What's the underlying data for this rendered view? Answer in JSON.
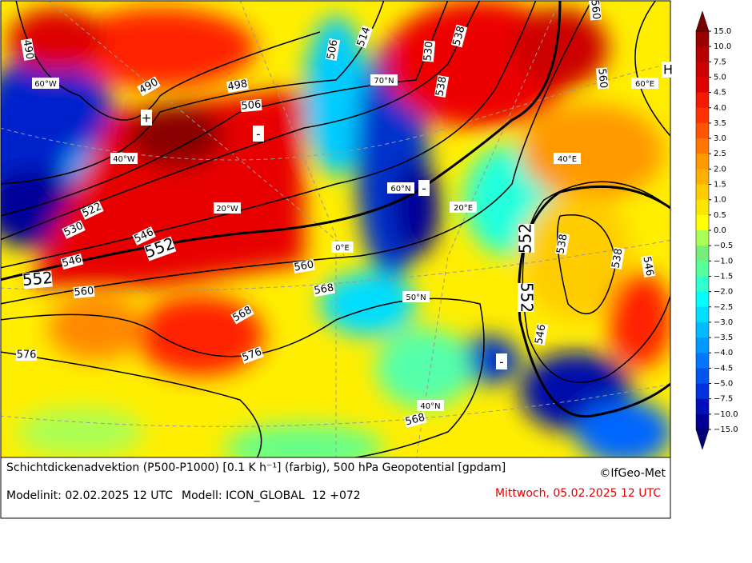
{
  "map": {
    "contour_labels": [
      "490",
      "490",
      "498",
      "506",
      "506",
      "514",
      "530",
      "538",
      "538",
      "560",
      "560",
      "522",
      "530",
      "546",
      "552",
      "546",
      "552",
      "560",
      "560",
      "568",
      "568",
      "576",
      "576",
      "568",
      "552",
      "552",
      "538",
      "538",
      "546",
      "546"
    ],
    "grid_labels": [
      "60°W",
      "40°W",
      "20°W",
      "0°E",
      "20°E",
      "40°E",
      "60°E",
      "70°N",
      "60°N",
      "50°N",
      "40°N"
    ],
    "markers": [
      "+",
      "-",
      "-",
      "-"
    ],
    "pressure_center": "H"
  },
  "colorbar": {
    "labels": [
      "15.0",
      "10.0",
      "7.5",
      "5.0",
      "4.5",
      "4.0",
      "3.5",
      "3.0",
      "2.5",
      "2.0",
      "1.5",
      "1.0",
      "0.5",
      "0.0",
      "−0.5",
      "−1.0",
      "−1.5",
      "−2.0",
      "−2.5",
      "−3.0",
      "−3.5",
      "−4.0",
      "−4.5",
      "−5.0",
      "−7.5",
      "−10.0",
      "−15.0"
    ],
    "colors": [
      "#7a0000",
      "#9b0000",
      "#b40000",
      "#cc0000",
      "#e00000",
      "#f21a00",
      "#ff3300",
      "#ff5500",
      "#ff7700",
      "#ff9900",
      "#ffb000",
      "#ffcc00",
      "#ffe600",
      "#ffff00",
      "#aaff55",
      "#77ee77",
      "#55ff99",
      "#33ffcc",
      "#00ffff",
      "#00ddff",
      "#00bbff",
      "#0099ff",
      "#0077ff",
      "#0055ee",
      "#0033dd",
      "#0011bb",
      "#000099",
      "#00007a"
    ]
  },
  "footer": {
    "title": "Schichtdickenadvektion (P500-P1000) [0.1 K h⁻¹] (farbig), 500 hPa Geopotential [gpdam]",
    "copyright": "©IfGeo-Met",
    "modelinit": "Modelinit: 02.02.2025 12 UTC",
    "model": "Modell: ICON_GLOBAL",
    "run": "12 +072",
    "valid": "Mittwoch, 05.02.2025 12 UTC"
  }
}
